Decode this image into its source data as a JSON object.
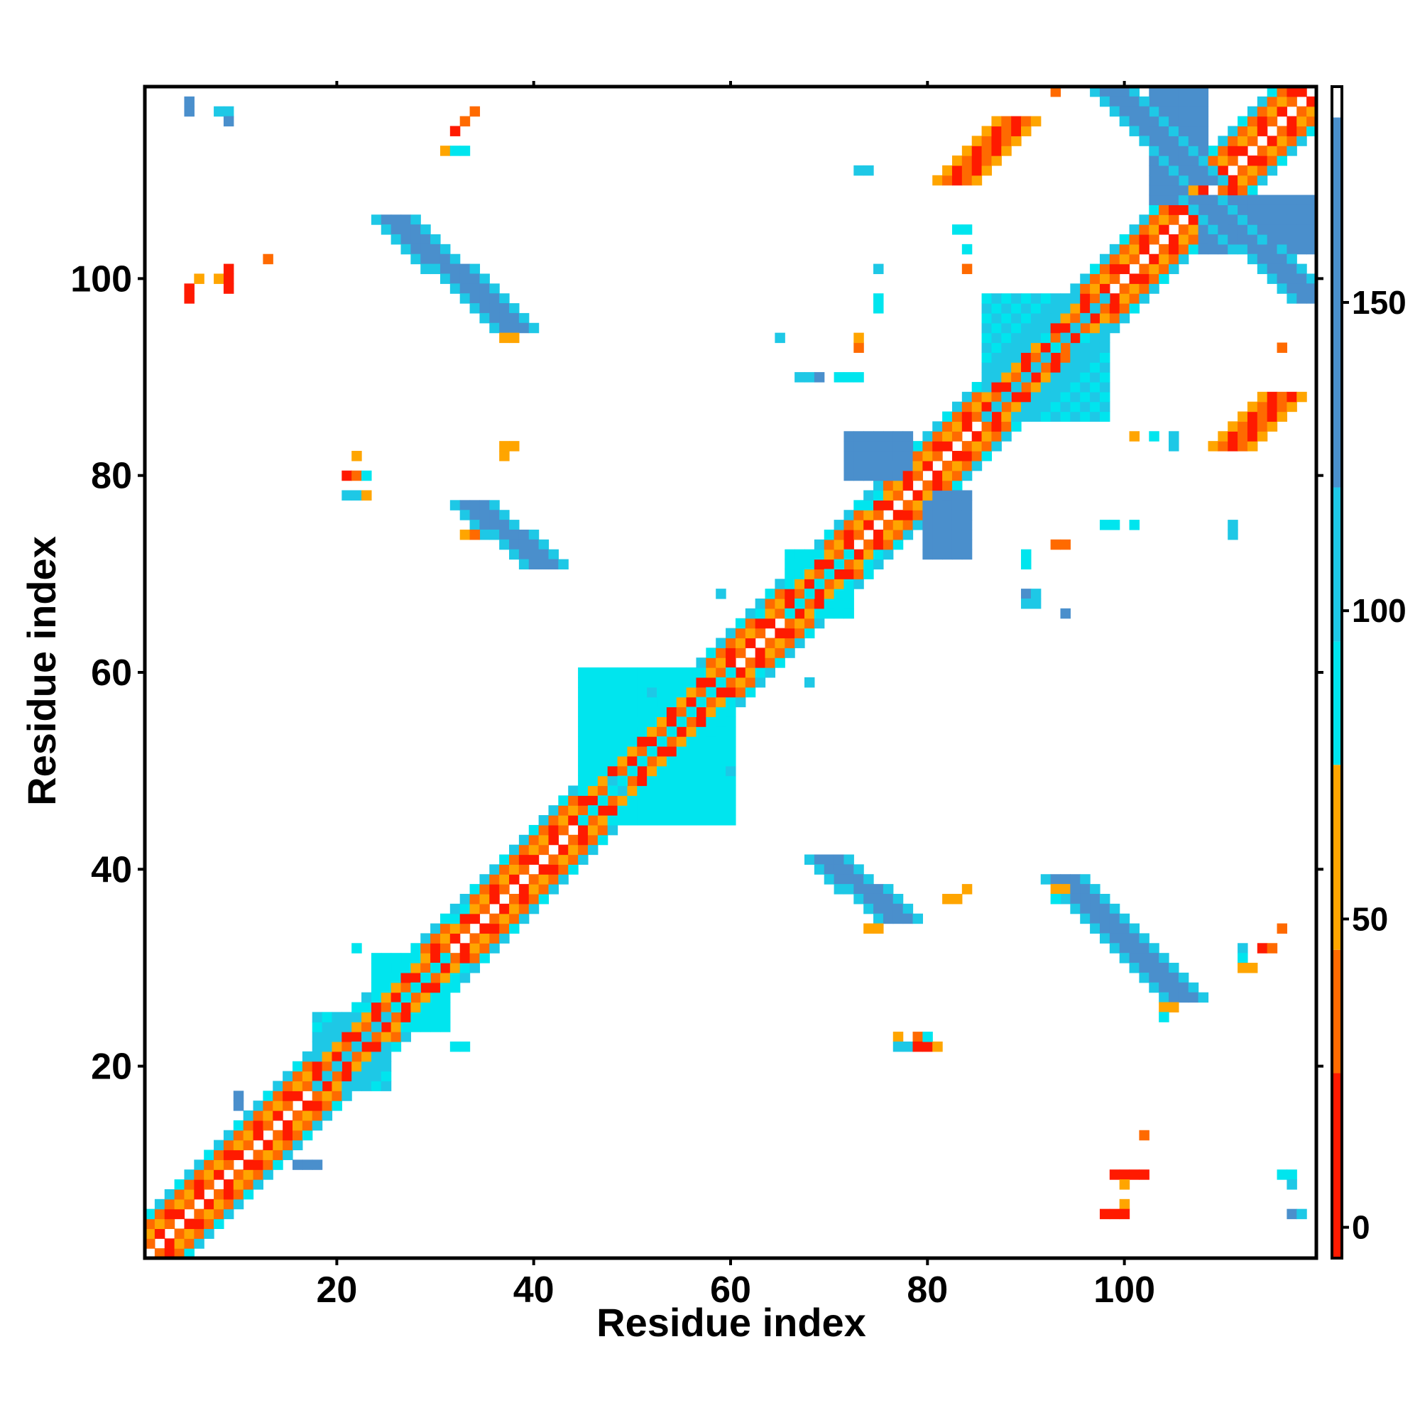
{
  "chart_data": {
    "type": "heatmap",
    "title": "",
    "xlabel": "Residue index",
    "ylabel": "Residue index",
    "xlim": [
      1,
      119
    ],
    "ylim": [
      1,
      119
    ],
    "x_ticks": [
      20,
      40,
      60,
      80,
      100
    ],
    "y_ticks": [
      20,
      40,
      60,
      80,
      100
    ],
    "grid": false,
    "colorbar": {
      "ticks": [
        0,
        50,
        100,
        150
      ],
      "range": [
        -5,
        185
      ],
      "bands": [
        {
          "from": -5,
          "to": 25,
          "color": "#ff1a00"
        },
        {
          "from": 25,
          "to": 45,
          "color": "#ff6a00"
        },
        {
          "from": 45,
          "to": 75,
          "color": "#ffa500"
        },
        {
          "from": 75,
          "to": 95,
          "color": "#00e5ee"
        },
        {
          "from": 95,
          "to": 120,
          "color": "#1ec8e6"
        },
        {
          "from": 120,
          "to": 180,
          "color": "#4a8fcc"
        },
        {
          "from": 180,
          "to": 185,
          "color": "#ffffff"
        }
      ]
    },
    "value_colors": {
      "0": "#ff1a00",
      "35": "#ff6a00",
      "60": "#ffa500",
      "90": "#00e5ee",
      "110": "#1ec8e6",
      "150": "#4a8fcc"
    },
    "diagonal_band": {
      "x_from": 1,
      "x_to": 119,
      "halfwidth": 4
    },
    "helix_segments": [
      [
        1,
        20
      ],
      [
        24,
        31
      ],
      [
        34,
        62
      ],
      [
        64,
        73
      ],
      [
        76,
        119
      ]
    ],
    "regions": [
      {
        "xs": 18,
        "xe": 25,
        "ys": 18,
        "ye": 25,
        "v": 110
      },
      {
        "xs": 24,
        "xe": 31,
        "ys": 24,
        "ye": 31,
        "v": 90
      },
      {
        "xs": 45,
        "xe": 60,
        "ys": 45,
        "ye": 60,
        "v": 90
      },
      {
        "xs": 66,
        "xe": 72,
        "ys": 66,
        "ye": 72,
        "v": 90
      },
      {
        "xs": 72,
        "xe": 78,
        "ys": 80,
        "ye": 84,
        "v": 150
      },
      {
        "xs": 80,
        "xe": 84,
        "ys": 72,
        "ye": 78,
        "v": 150
      },
      {
        "xs": 86,
        "xe": 98,
        "ys": 86,
        "ye": 98,
        "v": 110
      },
      {
        "xs": 103,
        "xe": 108,
        "ys": 108,
        "ye": 119,
        "v": 150
      },
      {
        "xs": 108,
        "xe": 119,
        "ys": 103,
        "ye": 108,
        "v": 150
      }
    ],
    "strands": [
      {
        "x0": 26,
        "y0": 106,
        "x1": 38,
        "y1": 95,
        "w": 2,
        "v": 150
      },
      {
        "x0": 34,
        "y0": 77,
        "x1": 41,
        "y1": 71,
        "w": 2,
        "v": 150
      },
      {
        "x0": 70,
        "y0": 41,
        "x1": 77,
        "y1": 35,
        "w": 2,
        "v": 150
      },
      {
        "x0": 94,
        "y0": 39,
        "x1": 106,
        "y1": 27,
        "w": 2,
        "v": 150
      },
      {
        "x0": 99,
        "y0": 119,
        "x1": 108,
        "y1": 110,
        "w": 2,
        "v": 150
      },
      {
        "x0": 108,
        "y0": 108,
        "x1": 119,
        "y1": 98,
        "w": 2,
        "v": 150
      },
      {
        "x0": 83,
        "y0": 110,
        "x1": 89,
        "y1": 116,
        "w": 2,
        "v": 35
      },
      {
        "x0": 111,
        "y0": 83,
        "x1": 116,
        "y1": 88,
        "w": 2,
        "v": 35
      }
    ],
    "patches": [
      {
        "x": 5,
        "y": 117,
        "v": 150
      },
      {
        "x": 5,
        "y": 118,
        "v": 150
      },
      {
        "x": 8,
        "y": 117,
        "v": 110
      },
      {
        "x": 9,
        "y": 117,
        "v": 110
      },
      {
        "x": 9,
        "y": 116,
        "v": 150
      },
      {
        "x": 5,
        "y": 99,
        "v": 0
      },
      {
        "x": 5,
        "y": 98,
        "v": 0
      },
      {
        "x": 6,
        "y": 100,
        "v": 60
      },
      {
        "x": 8,
        "y": 100,
        "v": 60
      },
      {
        "x": 9,
        "y": 99,
        "v": 0
      },
      {
        "x": 9,
        "y": 100,
        "v": 0
      },
      {
        "x": 9,
        "y": 101,
        "v": 0
      },
      {
        "x": 13,
        "y": 102,
        "v": 35
      },
      {
        "x": 31,
        "y": 113,
        "v": 60
      },
      {
        "x": 32,
        "y": 113,
        "v": 90
      },
      {
        "x": 33,
        "y": 113,
        "v": 90
      },
      {
        "x": 32,
        "y": 115,
        "v": 0
      },
      {
        "x": 33,
        "y": 116,
        "v": 35
      },
      {
        "x": 34,
        "y": 117,
        "v": 35
      },
      {
        "x": 37,
        "y": 83,
        "v": 60
      },
      {
        "x": 37,
        "y": 82,
        "v": 60
      },
      {
        "x": 38,
        "y": 83,
        "v": 60
      },
      {
        "x": 37,
        "y": 94,
        "v": 60
      },
      {
        "x": 38,
        "y": 94,
        "v": 60
      },
      {
        "x": 21,
        "y": 80,
        "v": 0
      },
      {
        "x": 22,
        "y": 80,
        "v": 35
      },
      {
        "x": 22,
        "y": 82,
        "v": 60
      },
      {
        "x": 21,
        "y": 78,
        "v": 110
      },
      {
        "x": 22,
        "y": 78,
        "v": 110
      },
      {
        "x": 23,
        "y": 78,
        "v": 60
      },
      {
        "x": 23,
        "y": 80,
        "v": 90
      },
      {
        "x": 22,
        "y": 32,
        "v": 90
      },
      {
        "x": 32,
        "y": 22,
        "v": 90
      },
      {
        "x": 33,
        "y": 22,
        "v": 90
      },
      {
        "x": 33,
        "y": 74,
        "v": 60
      },
      {
        "x": 34,
        "y": 74,
        "v": 35
      },
      {
        "x": 10,
        "y": 17,
        "v": 150
      },
      {
        "x": 10,
        "y": 16,
        "v": 150
      },
      {
        "x": 16,
        "y": 10,
        "v": 150
      },
      {
        "x": 17,
        "y": 10,
        "v": 150
      },
      {
        "x": 18,
        "y": 10,
        "v": 150
      },
      {
        "x": 48,
        "y": 49,
        "v": 110
      },
      {
        "x": 49,
        "y": 48,
        "v": 110
      },
      {
        "x": 50,
        "y": 60,
        "v": 90
      },
      {
        "x": 52,
        "y": 58,
        "v": 110
      },
      {
        "x": 58,
        "y": 52,
        "v": 90
      },
      {
        "x": 60,
        "y": 50,
        "v": 110
      },
      {
        "x": 73,
        "y": 111,
        "v": 110
      },
      {
        "x": 74,
        "y": 111,
        "v": 110
      },
      {
        "x": 75,
        "y": 101,
        "v": 110
      },
      {
        "x": 75,
        "y": 98,
        "v": 90
      },
      {
        "x": 75,
        "y": 97,
        "v": 90
      },
      {
        "x": 83,
        "y": 105,
        "v": 90
      },
      {
        "x": 84,
        "y": 105,
        "v": 90
      },
      {
        "x": 84,
        "y": 103,
        "v": 90
      },
      {
        "x": 84,
        "y": 101,
        "v": 35
      },
      {
        "x": 65,
        "y": 94,
        "v": 110
      },
      {
        "x": 67,
        "y": 90,
        "v": 110
      },
      {
        "x": 68,
        "y": 90,
        "v": 110
      },
      {
        "x": 69,
        "y": 90,
        "v": 150
      },
      {
        "x": 71,
        "y": 90,
        "v": 90
      },
      {
        "x": 72,
        "y": 90,
        "v": 90
      },
      {
        "x": 73,
        "y": 90,
        "v": 90
      },
      {
        "x": 73,
        "y": 93,
        "v": 35
      },
      {
        "x": 73,
        "y": 94,
        "v": 60
      },
      {
        "x": 92,
        "y": 94,
        "v": 90
      },
      {
        "x": 93,
        "y": 93,
        "v": 90
      },
      {
        "x": 94,
        "y": 92,
        "v": 35
      },
      {
        "x": 95,
        "y": 93,
        "v": 110
      },
      {
        "x": 93,
        "y": 98,
        "v": 110
      },
      {
        "x": 98,
        "y": 93,
        "v": 110
      },
      {
        "x": 96,
        "y": 94,
        "v": 90
      },
      {
        "x": 97,
        "y": 93,
        "v": 110
      },
      {
        "x": 93,
        "y": 119,
        "v": 35
      },
      {
        "x": 90,
        "y": 71,
        "v": 90
      },
      {
        "x": 90,
        "y": 72,
        "v": 90
      },
      {
        "x": 90,
        "y": 68,
        "v": 150
      },
      {
        "x": 91,
        "y": 68,
        "v": 110
      },
      {
        "x": 90,
        "y": 67,
        "v": 110
      },
      {
        "x": 91,
        "y": 67,
        "v": 110
      },
      {
        "x": 94,
        "y": 66,
        "v": 150
      },
      {
        "x": 93,
        "y": 73,
        "v": 35
      },
      {
        "x": 94,
        "y": 73,
        "v": 35
      },
      {
        "x": 98,
        "y": 75,
        "v": 90
      },
      {
        "x": 99,
        "y": 75,
        "v": 90
      },
      {
        "x": 101,
        "y": 75,
        "v": 90
      },
      {
        "x": 101,
        "y": 84,
        "v": 60
      },
      {
        "x": 103,
        "y": 84,
        "v": 90
      },
      {
        "x": 105,
        "y": 84,
        "v": 110
      },
      {
        "x": 105,
        "y": 83,
        "v": 110
      },
      {
        "x": 111,
        "y": 75,
        "v": 110
      },
      {
        "x": 111,
        "y": 74,
        "v": 110
      },
      {
        "x": 116,
        "y": 93,
        "v": 35
      },
      {
        "x": 68,
        "y": 59,
        "v": 110
      },
      {
        "x": 59,
        "y": 68,
        "v": 110
      },
      {
        "x": 82,
        "y": 37,
        "v": 60
      },
      {
        "x": 83,
        "y": 37,
        "v": 60
      },
      {
        "x": 84,
        "y": 38,
        "v": 60
      },
      {
        "x": 74,
        "y": 34,
        "v": 60
      },
      {
        "x": 75,
        "y": 34,
        "v": 60
      },
      {
        "x": 77,
        "y": 23,
        "v": 60
      },
      {
        "x": 78,
        "y": 22,
        "v": 110
      },
      {
        "x": 77,
        "y": 22,
        "v": 110
      },
      {
        "x": 79,
        "y": 23,
        "v": 35
      },
      {
        "x": 80,
        "y": 22,
        "v": 0
      },
      {
        "x": 79,
        "y": 22,
        "v": 0
      },
      {
        "x": 80,
        "y": 23,
        "v": 90
      },
      {
        "x": 81,
        "y": 22,
        "v": 60
      },
      {
        "x": 93,
        "y": 37,
        "v": 90
      },
      {
        "x": 93,
        "y": 38,
        "v": 60
      },
      {
        "x": 94,
        "y": 38,
        "v": 60
      },
      {
        "x": 104,
        "y": 26,
        "v": 60
      },
      {
        "x": 105,
        "y": 26,
        "v": 60
      },
      {
        "x": 104,
        "y": 25,
        "v": 90
      },
      {
        "x": 112,
        "y": 32,
        "v": 110
      },
      {
        "x": 112,
        "y": 31,
        "v": 90
      },
      {
        "x": 112,
        "y": 30,
        "v": 60
      },
      {
        "x": 113,
        "y": 30,
        "v": 60
      },
      {
        "x": 114,
        "y": 32,
        "v": 0
      },
      {
        "x": 115,
        "y": 32,
        "v": 35
      },
      {
        "x": 116,
        "y": 34,
        "v": 35
      },
      {
        "x": 102,
        "y": 13,
        "v": 35
      },
      {
        "x": 99,
        "y": 9,
        "v": 0
      },
      {
        "x": 100,
        "y": 9,
        "v": 0
      },
      {
        "x": 101,
        "y": 9,
        "v": 0
      },
      {
        "x": 102,
        "y": 9,
        "v": 0
      },
      {
        "x": 100,
        "y": 8,
        "v": 60
      },
      {
        "x": 100,
        "y": 6,
        "v": 60
      },
      {
        "x": 98,
        "y": 5,
        "v": 0
      },
      {
        "x": 99,
        "y": 5,
        "v": 0
      },
      {
        "x": 100,
        "y": 5,
        "v": 0
      },
      {
        "x": 116,
        "y": 9,
        "v": 90
      },
      {
        "x": 117,
        "y": 9,
        "v": 90
      },
      {
        "x": 117,
        "y": 8,
        "v": 110
      },
      {
        "x": 117,
        "y": 5,
        "v": 150
      },
      {
        "x": 118,
        "y": 5,
        "v": 110
      }
    ]
  }
}
